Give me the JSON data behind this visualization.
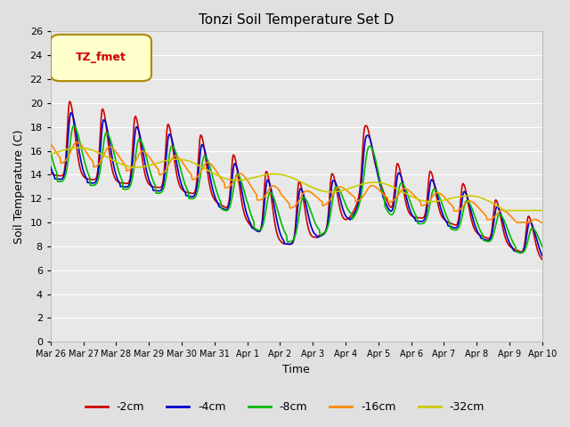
{
  "title": "Tonzi Soil Temperature Set D",
  "xlabel": "Time",
  "ylabel": "Soil Temperature (C)",
  "ylim": [
    0,
    26
  ],
  "yticks": [
    0,
    2,
    4,
    6,
    8,
    10,
    12,
    14,
    16,
    18,
    20,
    22,
    24,
    26
  ],
  "series": {
    "-2cm": {
      "color": "#cc0000",
      "lw": 1.2
    },
    "-4cm": {
      "color": "#0000cc",
      "lw": 1.2
    },
    "-8cm": {
      "color": "#00bb00",
      "lw": 1.2
    },
    "-16cm": {
      "color": "#ff8800",
      "lw": 1.2
    },
    "-32cm": {
      "color": "#cccc00",
      "lw": 1.2
    }
  },
  "legend_label": "TZ_fmet",
  "bg_color": "#e0e0e0",
  "plot_bg": "#e8e8e8",
  "grid_color": "#ffffff",
  "day_labels": [
    "Mar 26",
    "Mar 27",
    "Mar 28",
    "Mar 29",
    "Mar 30",
    "Mar 31",
    "Apr 1",
    "Apr 2",
    "Apr 3",
    "Apr 4",
    "Apr 5",
    "Apr 6",
    "Apr 7",
    "Apr 8",
    "Apr 9",
    "Apr 10"
  ]
}
